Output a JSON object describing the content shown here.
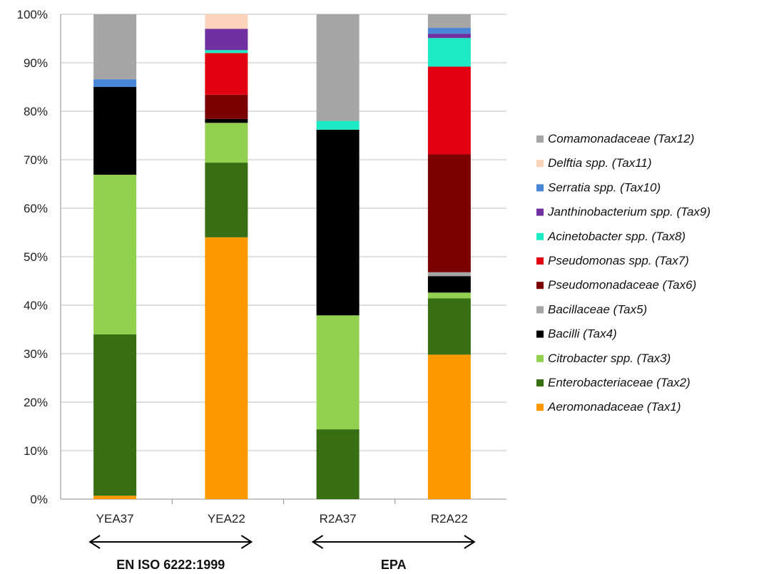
{
  "chart_data": {
    "type": "bar",
    "stacked": "percent",
    "categories": [
      "YEA37",
      "YEA22",
      "R2A37",
      "R2A22"
    ],
    "y_ticks": [
      "0%",
      "10%",
      "20%",
      "30%",
      "40%",
      "50%",
      "60%",
      "70%",
      "80%",
      "90%",
      "100%"
    ],
    "ylim": [
      0,
      100
    ],
    "grid": true,
    "legend_position": "right",
    "series": [
      {
        "name": "Aeromonadaceae (Tax1)",
        "color": "#FF9900",
        "values": [
          0.7,
          54.0,
          0.0,
          29.8
        ]
      },
      {
        "name": "Enterobacteriaceae (Tax2)",
        "color": "#376F12",
        "values": [
          33.3,
          15.4,
          14.4,
          11.6
        ]
      },
      {
        "name": "Citrobacter spp. (Tax3)",
        "color": "#92D050",
        "values": [
          32.9,
          8.2,
          23.5,
          1.2
        ]
      },
      {
        "name": "Bacilli (Tax4)",
        "color": "#000000",
        "values": [
          18.1,
          0.8,
          38.3,
          3.4
        ]
      },
      {
        "name": "Bacillaceae (Tax5)",
        "color": "#A6A6A6",
        "values": [
          0,
          0,
          0,
          0.8
        ]
      },
      {
        "name": "Pseudomonadaceae (Tax6)",
        "color": "#7B0000",
        "values": [
          0,
          5.0,
          0,
          24.3
        ]
      },
      {
        "name": "Pseudomonas spp. (Tax7)",
        "color": "#E00010",
        "values": [
          0,
          8.6,
          0,
          18.1
        ]
      },
      {
        "name": "Acinetobacter spp. (Tax8)",
        "color": "#1DE9C4",
        "values": [
          0,
          0.6,
          1.8,
          5.9
        ]
      },
      {
        "name": "Janthinobacterium spp. (Tax9)",
        "color": "#7030A0",
        "values": [
          0,
          4.4,
          0,
          0.9
        ]
      },
      {
        "name": "Serratia spp. (Tax10)",
        "color": "#4A86D8",
        "values": [
          1.6,
          0,
          0,
          1.2
        ]
      },
      {
        "name": "Delftia spp. (Tax11)",
        "color": "#FAD3B8",
        "values": [
          0,
          3.0,
          0,
          0
        ]
      },
      {
        "name": "Comamonadaceae (Tax12)",
        "color": "#A6A6A6",
        "values": [
          13.4,
          0,
          22.0,
          2.8
        ]
      }
    ],
    "groups": [
      {
        "label": "EN ISO 6222:1999",
        "categories": [
          "YEA37",
          "YEA22"
        ]
      },
      {
        "label": "EPA",
        "categories": [
          "R2A37",
          "R2A22"
        ]
      }
    ]
  }
}
